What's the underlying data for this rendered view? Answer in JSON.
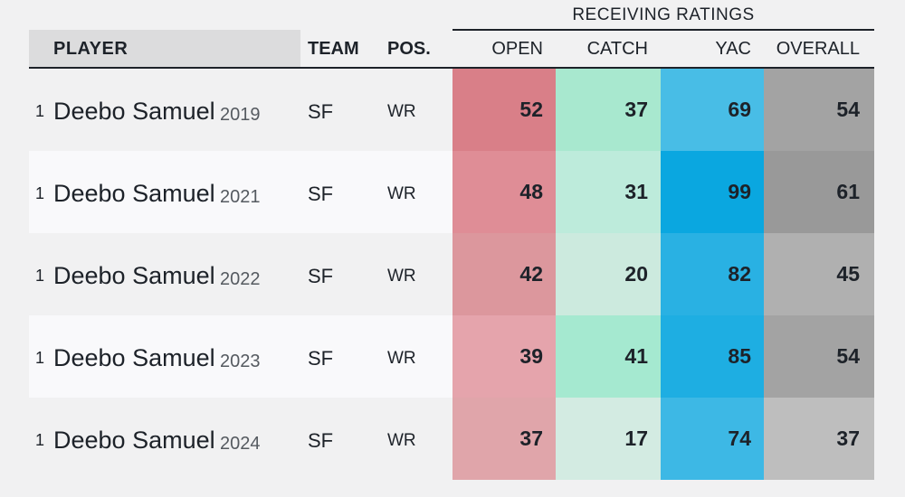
{
  "table": {
    "group_header": "RECEIVING RATINGS",
    "columns": {
      "player": "PLAYER",
      "team": "TEAM",
      "pos": "POS.",
      "open": "OPEN",
      "catch": "CATCH",
      "yac": "YAC",
      "overall": "OVERALL"
    },
    "rows": [
      {
        "rank": "1",
        "player": "Deebo Samuel",
        "season": "2019",
        "team": "SF",
        "pos": "WR",
        "open": "52",
        "catch": "37",
        "yac": "69",
        "overall": "54",
        "row_bg": "#f1f1f2",
        "open_color": "#d97f88",
        "catch_color": "#a8e8cf",
        "yac_color": "#48bde6",
        "overall_color": "#a3a3a3"
      },
      {
        "rank": "1",
        "player": "Deebo Samuel",
        "season": "2021",
        "team": "SF",
        "pos": "WR",
        "open": "48",
        "catch": "31",
        "yac": "99",
        "overall": "61",
        "row_bg": "#f9f9fb",
        "open_color": "#df8d96",
        "catch_color": "#bdebdb",
        "yac_color": "#0aa7e0",
        "overall_color": "#999999"
      },
      {
        "rank": "1",
        "player": "Deebo Samuel",
        "season": "2022",
        "team": "SF",
        "pos": "WR",
        "open": "42",
        "catch": "20",
        "yac": "82",
        "overall": "45",
        "row_bg": "#f1f1f2",
        "open_color": "#dc979d",
        "catch_color": "#cceade",
        "yac_color": "#29b1e3",
        "overall_color": "#b0b0b0"
      },
      {
        "rank": "1",
        "player": "Deebo Samuel",
        "season": "2023",
        "team": "SF",
        "pos": "WR",
        "open": "39",
        "catch": "41",
        "yac": "85",
        "overall": "54",
        "row_bg": "#f9f9fb",
        "open_color": "#e5a4ac",
        "catch_color": "#a5e9d0",
        "yac_color": "#1eaee2",
        "overall_color": "#a3a3a3"
      },
      {
        "rank": "1",
        "player": "Deebo Samuel",
        "season": "2024",
        "team": "SF",
        "pos": "WR",
        "open": "37",
        "catch": "17",
        "yac": "74",
        "overall": "37",
        "row_bg": "#f1f1f2",
        "open_color": "#e0a5aa",
        "catch_color": "#d3ebe2",
        "yac_color": "#3db8e5",
        "overall_color": "#bebebe"
      }
    ]
  }
}
